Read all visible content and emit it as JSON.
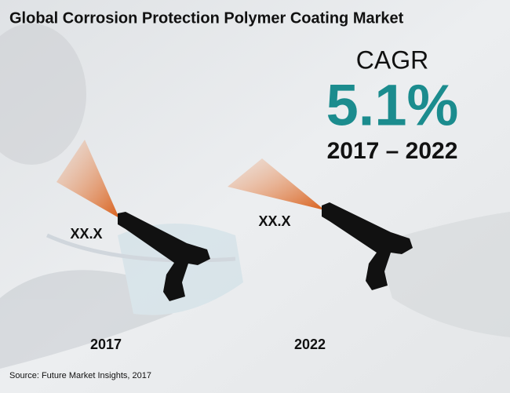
{
  "header": {
    "title": "Global Corrosion Protection Polymer Coating Market"
  },
  "cagr": {
    "label": "CAGR",
    "value": "5.1%",
    "period": "2017 – 2022"
  },
  "points": [
    {
      "year": "2017",
      "value": "XX.X"
    },
    {
      "year": "2022",
      "value": "XX.X"
    }
  ],
  "footer": {
    "source": "Source: Future Market Insights, 2017"
  }
}
